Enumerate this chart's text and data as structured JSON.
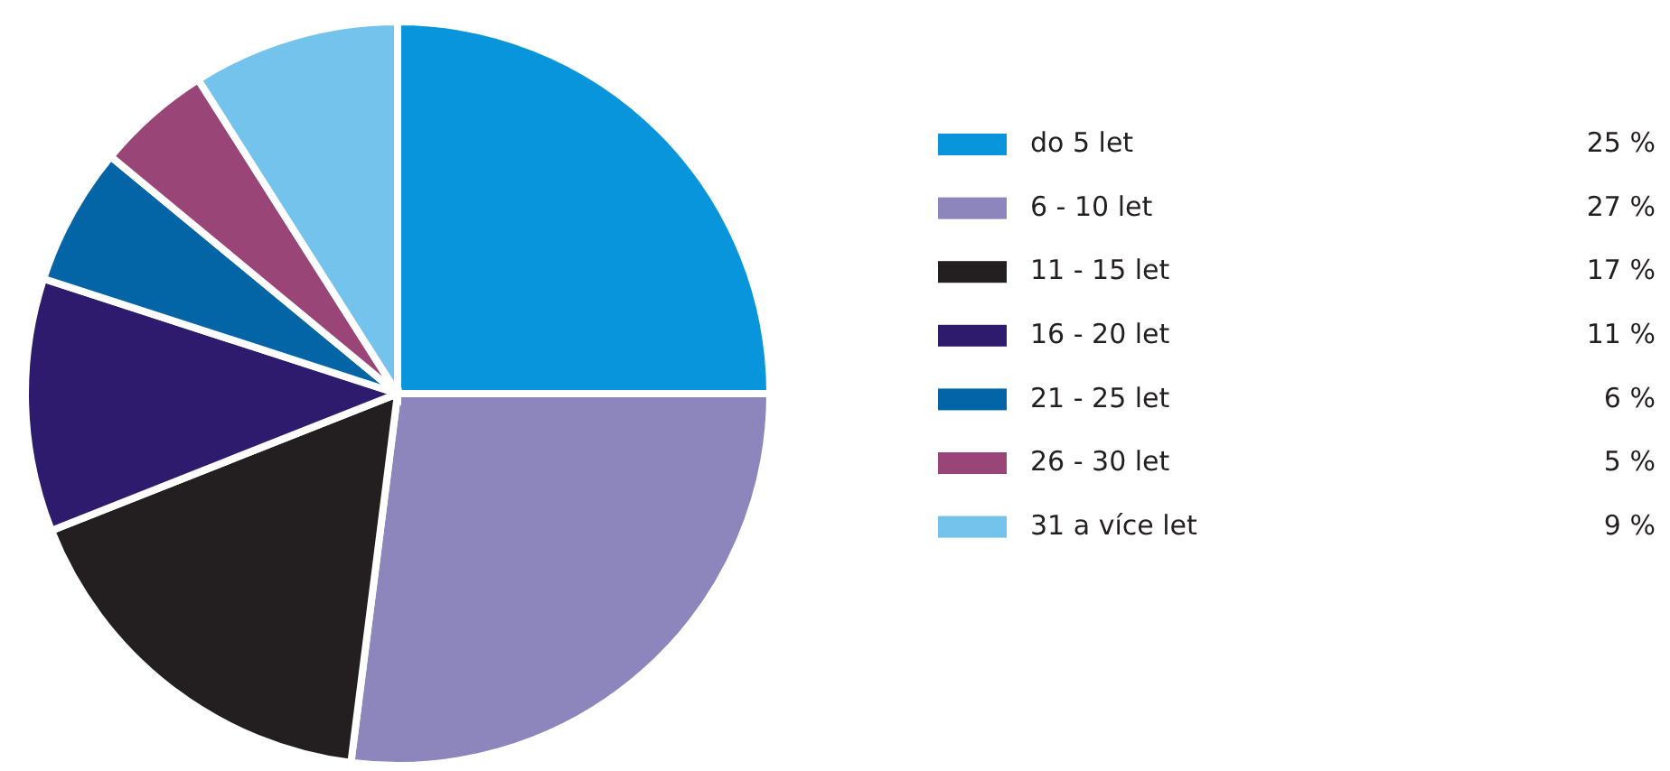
{
  "chart_data": {
    "type": "pie",
    "categories": [
      "do 5 let",
      "6 - 10 let",
      "11 - 15 let",
      "16 - 20 let",
      "21 - 25 let",
      "26 - 30 let",
      "31 a více let"
    ],
    "values": [
      25,
      27,
      17,
      11,
      6,
      5,
      9
    ],
    "colors": [
      "#0895db",
      "#8c86bc",
      "#231f20",
      "#2e1b6e",
      "#0465a6",
      "#9a4577",
      "#74c3ec"
    ],
    "value_labels": [
      "25 %",
      "27 %",
      "17 %",
      "11 %",
      "6 %",
      "5 %",
      "9 %"
    ],
    "legend": "right"
  }
}
